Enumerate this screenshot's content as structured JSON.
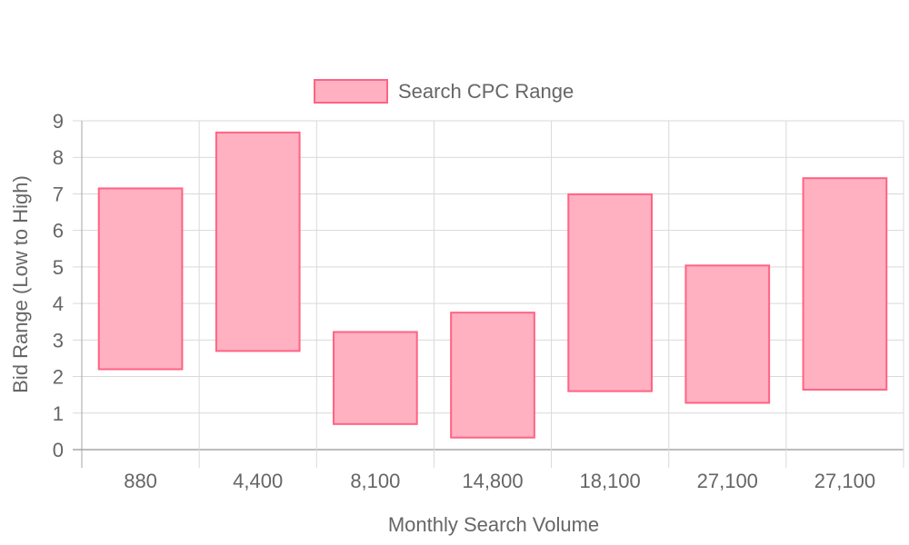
{
  "chart_data": {
    "type": "bar",
    "subtype": "floating-range",
    "categories": [
      "880",
      "4,400",
      "8,100",
      "14,800",
      "18,100",
      "27,100",
      "27,100"
    ],
    "series": [
      {
        "name": "Search CPC Range",
        "ranges": [
          [
            2.2,
            7.15
          ],
          [
            2.7,
            8.68
          ],
          [
            0.7,
            3.22
          ],
          [
            0.33,
            3.75
          ],
          [
            1.6,
            6.99
          ],
          [
            1.28,
            5.04
          ],
          [
            1.64,
            7.43
          ]
        ],
        "fill_color": "#ffb1c1",
        "border_color": "#ff6384"
      }
    ],
    "xlabel": "Monthly Search Volume",
    "ylabel": "Bid Range (Low to High)",
    "ylim": [
      0,
      9
    ],
    "yticks": [
      "0",
      "1",
      "2",
      "3",
      "4",
      "5",
      "6",
      "7",
      "8",
      "9"
    ],
    "grid": true,
    "legend_position": "top"
  }
}
